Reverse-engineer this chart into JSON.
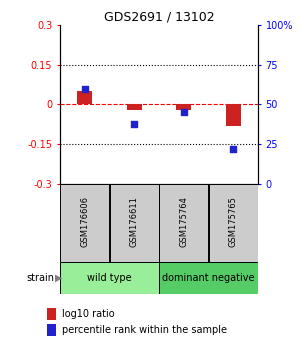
{
  "title": "GDS2691 / 13102",
  "samples": [
    "GSM176606",
    "GSM176611",
    "GSM175764",
    "GSM175765"
  ],
  "log10_ratio": [
    0.05,
    -0.02,
    -0.02,
    -0.08
  ],
  "percentile_rank": [
    60,
    38,
    45,
    22
  ],
  "group_spans": [
    {
      "label": "wild type",
      "start": 0,
      "end": 1,
      "color": "#99EE99"
    },
    {
      "label": "dominant negative",
      "start": 2,
      "end": 3,
      "color": "#55CC66"
    }
  ],
  "ylim_left": [
    -0.3,
    0.3
  ],
  "ylim_right": [
    0,
    100
  ],
  "yticks_left": [
    -0.3,
    -0.15,
    0,
    0.15,
    0.3
  ],
  "yticks_right": [
    0,
    25,
    50,
    75,
    100
  ],
  "ytick_labels_left": [
    "-0.3",
    "-0.15",
    "0",
    "0.15",
    "0.3"
  ],
  "ytick_labels_right": [
    "0",
    "25",
    "50",
    "75",
    "100%"
  ],
  "hlines_y": [
    0.15,
    -0.15
  ],
  "red_hline_y": 0.0,
  "bar_color": "#CC2222",
  "dot_color": "#2222CC",
  "bar_width": 0.3,
  "dot_size": 25,
  "strain_label": "strain",
  "legend_red": "log10 ratio",
  "legend_blue": "percentile rank within the sample",
  "bg_label": "#CCCCCC",
  "bg_group_wt": "#AAEEBB",
  "bg_group_dn": "#66CC77"
}
